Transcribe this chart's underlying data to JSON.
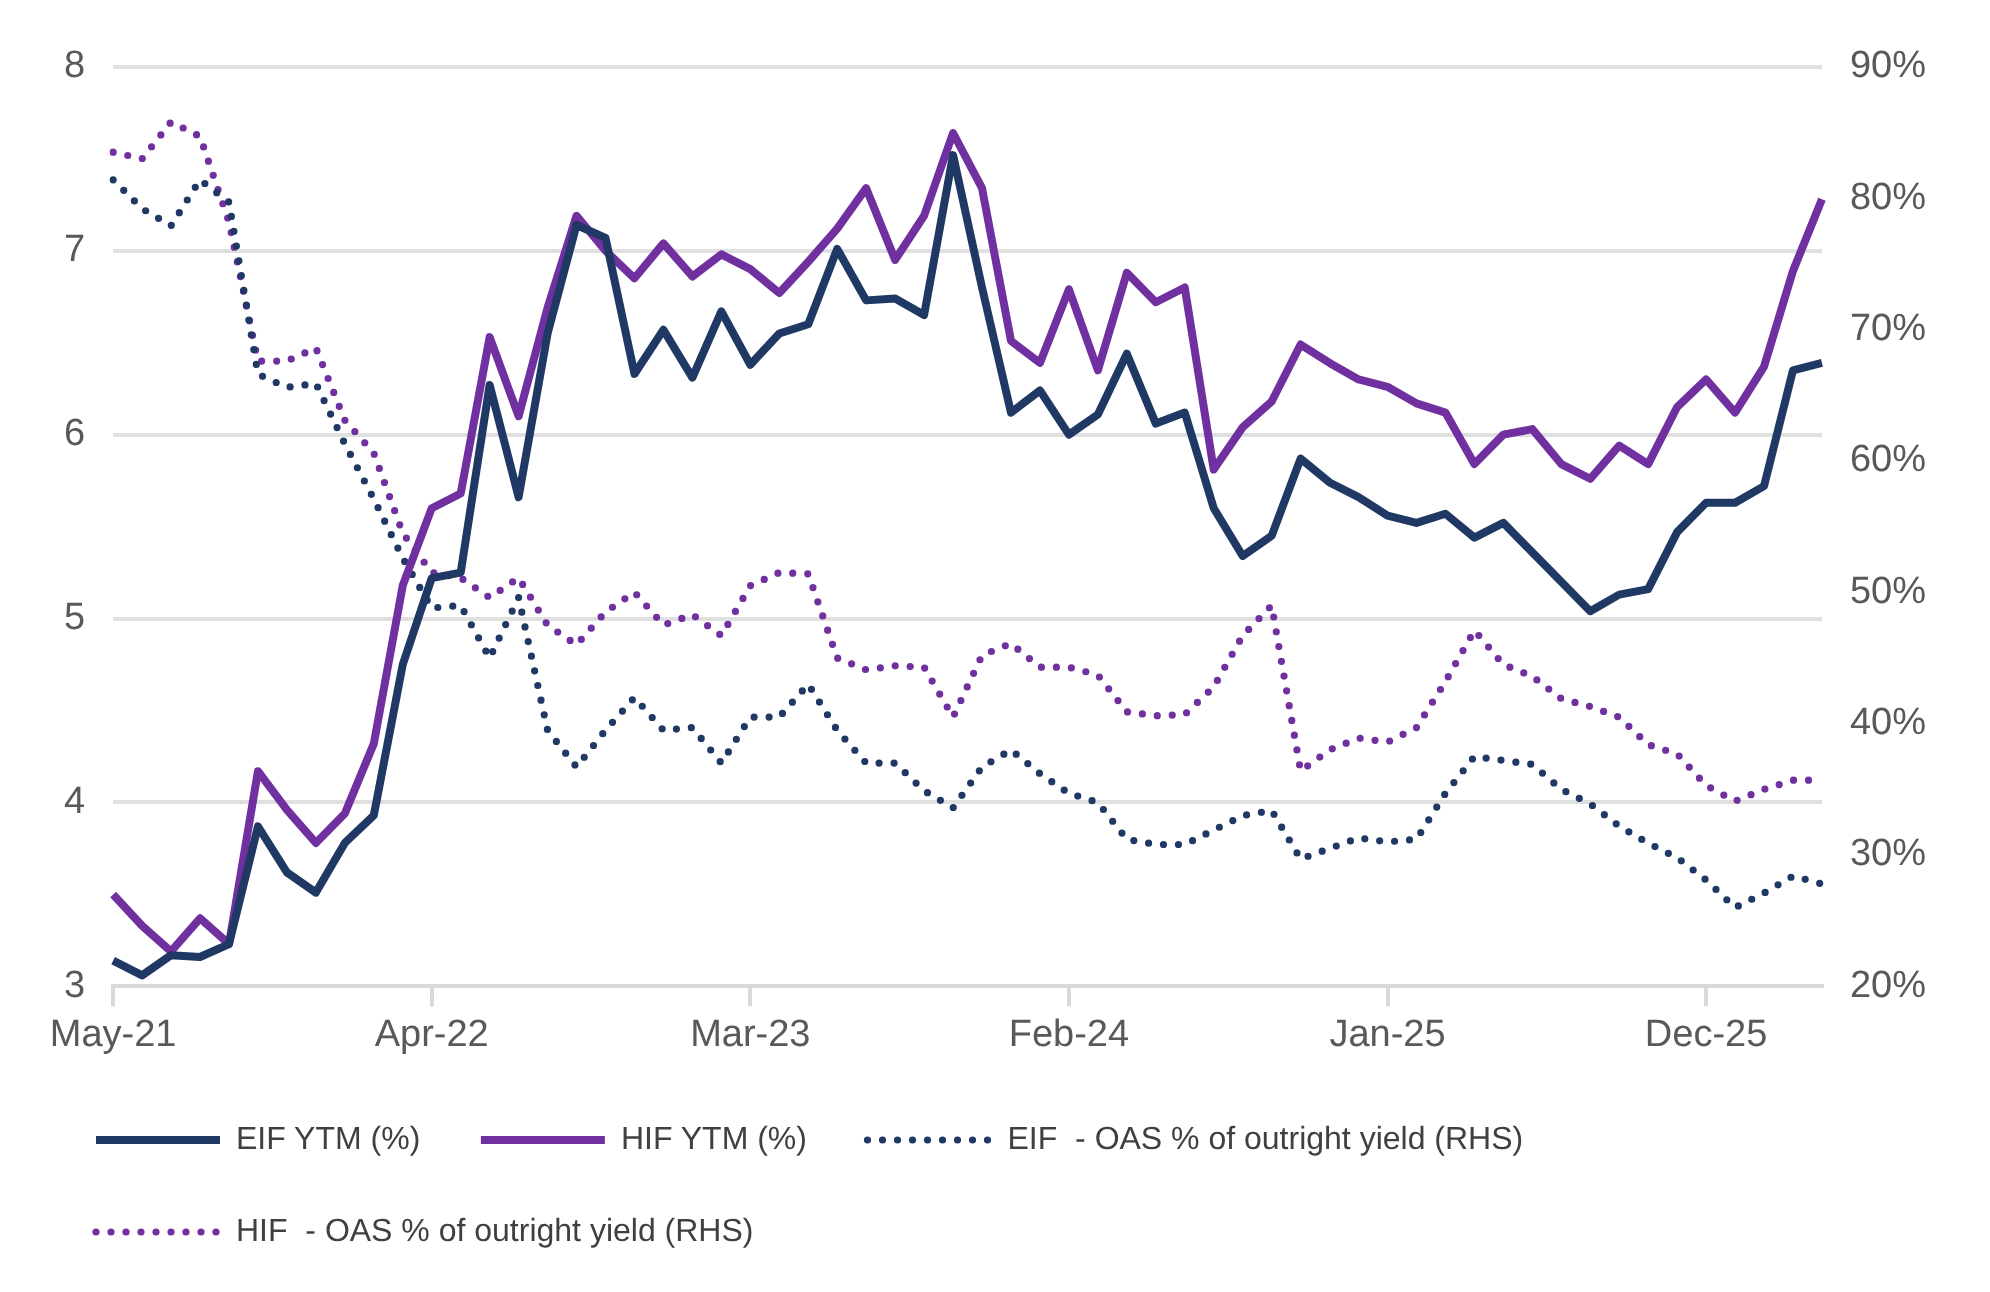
{
  "chart_data": {
    "type": "line",
    "categories": [
      "May-21",
      null,
      null,
      null,
      null,
      null,
      null,
      null,
      null,
      null,
      null,
      "Apr-22",
      null,
      null,
      null,
      null,
      null,
      null,
      null,
      null,
      null,
      null,
      "Mar-23",
      null,
      null,
      null,
      null,
      null,
      null,
      null,
      null,
      null,
      null,
      "Feb-24",
      null,
      null,
      null,
      null,
      null,
      null,
      null,
      null,
      null,
      null,
      "Jan-25",
      null,
      null,
      null,
      null,
      null,
      null,
      null,
      null,
      null,
      null,
      "Dec-25",
      null,
      null,
      null,
      null
    ],
    "series": [
      {
        "name": "EIF YTM (%)",
        "color": "#1f3864",
        "line_style": "solid",
        "values": [
          3.14,
          3.06,
          3.17,
          3.16,
          3.23,
          3.87,
          3.62,
          3.51,
          3.78,
          3.93,
          4.75,
          5.22,
          5.25,
          6.27,
          5.66,
          6.55,
          7.14,
          7.07,
          6.33,
          6.57,
          6.31,
          6.67,
          6.38,
          6.55,
          6.6,
          7.01,
          6.73,
          6.74,
          6.65,
          7.52,
          6.8,
          6.12,
          6.24,
          6.0,
          6.11,
          6.44,
          6.06,
          6.12,
          5.6,
          5.34,
          5.45,
          5.87,
          5.74,
          5.66,
          5.56,
          5.52,
          5.57,
          5.44,
          5.52,
          5.36,
          5.2,
          5.04,
          5.13,
          5.16,
          5.47,
          5.63,
          5.63,
          5.72,
          6.35,
          6.39
        ]
      },
      {
        "name": "HIF YTM (%)",
        "color": "#7030a0",
        "line_style": "solid",
        "values": [
          3.5,
          3.33,
          3.19,
          3.37,
          3.23,
          4.17,
          3.96,
          3.78,
          3.94,
          4.32,
          5.18,
          5.6,
          5.68,
          6.53,
          6.1,
          6.69,
          7.19,
          7.0,
          6.85,
          7.04,
          6.86,
          6.98,
          6.9,
          6.77,
          6.94,
          7.12,
          7.34,
          6.95,
          7.19,
          7.64,
          7.34,
          6.51,
          6.39,
          6.79,
          6.35,
          6.88,
          6.72,
          6.8,
          5.81,
          6.04,
          6.18,
          6.49,
          6.39,
          6.3,
          6.26,
          6.17,
          6.12,
          5.84,
          6.0,
          6.03,
          5.84,
          5.76,
          5.94,
          5.84,
          6.15,
          6.3,
          6.12,
          6.37,
          6.89,
          7.28
        ]
      },
      {
        "name": "EIF  - OAS % of outright yield (RHS)",
        "color": "#1f3864",
        "line_style": "dotted",
        "axis": "y2",
        "values": [
          81.4,
          79.2,
          77.9,
          81.4,
          79.7,
          66.6,
          65.6,
          65.9,
          61.3,
          57.1,
          52.6,
          48.8,
          49.0,
          45.0,
          49.6,
          39.5,
          36.7,
          39.5,
          42.0,
          39.5,
          39.7,
          37.0,
          40.5,
          40.5,
          43.0,
          39.5,
          37.0,
          37.0,
          34.9,
          33.6,
          36.7,
          38.0,
          36.2,
          34.7,
          34.0,
          31.2,
          30.8,
          30.8,
          31.9,
          33.0,
          33.4,
          29.7,
          30.5,
          31.3,
          31.0,
          31.2,
          34.7,
          37.5,
          37.2,
          36.9,
          35.0,
          33.9,
          32.2,
          30.9,
          29.8,
          28.1,
          26.0,
          27.1,
          28.4,
          27.8
        ]
      },
      {
        "name": "HIF  - OAS % of outright yield (RHS)",
        "color": "#7030a0",
        "line_style": "dotted",
        "axis": "y2",
        "values": [
          83.5,
          83.0,
          85.8,
          84.7,
          78.2,
          67.6,
          67.6,
          68.6,
          63.1,
          60.6,
          54.5,
          51.5,
          51.1,
          49.6,
          51.1,
          47.5,
          46.0,
          48.5,
          50.0,
          47.5,
          48.3,
          46.7,
          50.5,
          51.5,
          51.4,
          45.0,
          44.1,
          44.4,
          44.3,
          40.5,
          45.2,
          46.1,
          44.3,
          44.3,
          43.7,
          40.9,
          40.6,
          40.7,
          42.8,
          46.7,
          49.0,
          36.4,
          38.0,
          38.9,
          38.6,
          39.7,
          43.2,
          47.1,
          44.5,
          43.6,
          41.9,
          41.3,
          40.5,
          38.4,
          37.7,
          35.3,
          34.1,
          35.0,
          35.7,
          35.7
        ]
      }
    ],
    "ylim": [
      3,
      8
    ],
    "yticks": [
      3,
      4,
      5,
      6,
      7,
      8
    ],
    "y2lim": [
      20,
      90
    ],
    "y2ticks": [
      {
        "value": 20,
        "label": "20%"
      },
      {
        "value": 30,
        "label": "30%"
      },
      {
        "value": 40,
        "label": "40%"
      },
      {
        "value": 50,
        "label": "50%"
      },
      {
        "value": 60,
        "label": "60%"
      },
      {
        "value": 70,
        "label": "70%"
      },
      {
        "value": 80,
        "label": "80%"
      },
      {
        "value": 90,
        "label": "90%"
      }
    ],
    "grid": "y",
    "legend": "bottom"
  }
}
